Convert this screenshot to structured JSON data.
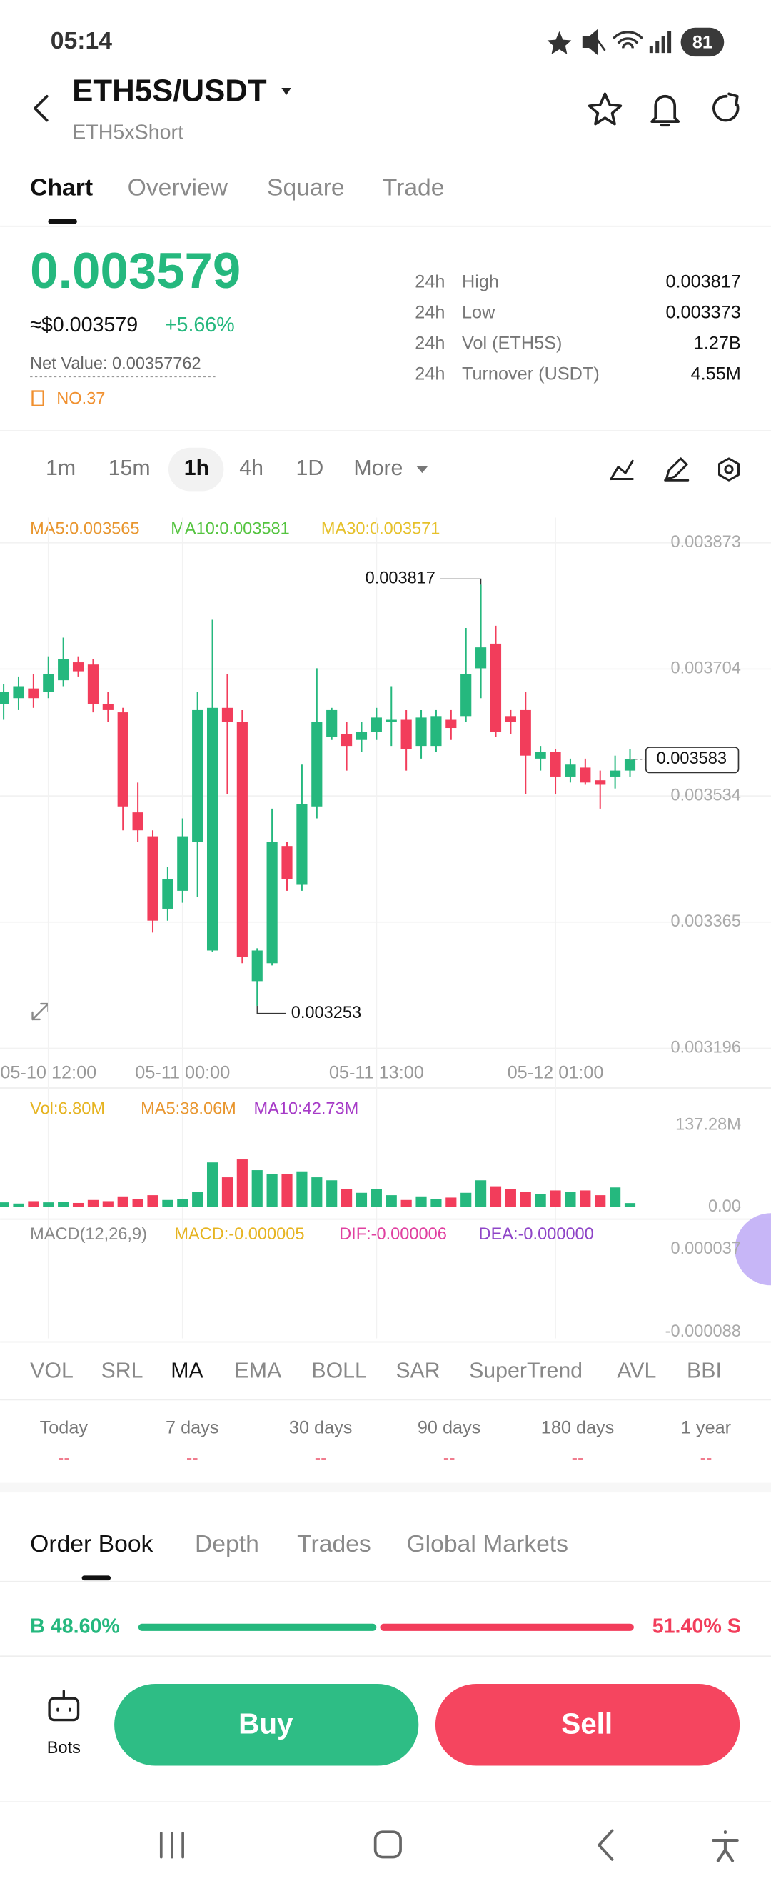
{
  "status_bar": {
    "time": "05:14",
    "battery": "81"
  },
  "header": {
    "pair": "ETH5S/USDT",
    "subtitle": "ETH5xShort"
  },
  "tabs": [
    "Chart",
    "Overview",
    "Square",
    "Trade"
  ],
  "price": {
    "last": "0.003579",
    "fiat": "≈$0.003579",
    "change": "+5.66%",
    "net_value": "Net Value: 0.00357762",
    "rank": "NO.37"
  },
  "stats": [
    {
      "period": "24h",
      "label": "High",
      "value": "0.003817"
    },
    {
      "period": "24h",
      "label": "Low",
      "value": "0.003373"
    },
    {
      "period": "24h",
      "label": "Vol (ETH5S)",
      "value": "1.27B"
    },
    {
      "period": "24h",
      "label": "Turnover (USDT)",
      "value": "4.55M"
    }
  ],
  "intervals": [
    "1m",
    "15m",
    "1h",
    "4h",
    "1D",
    "More"
  ],
  "kline": {
    "type": "candlestick",
    "ma_labels": [
      "MA5:0.003565",
      "MA10:0.003581",
      "MA30:0.003571"
    ],
    "ylim": [
      0.003196,
      0.003873
    ],
    "yticks": [
      0.003873,
      0.003704,
      0.003534,
      0.003365,
      0.003196
    ],
    "categories": [
      null,
      null,
      null,
      "05-10 12:00",
      null,
      null,
      null,
      null,
      null,
      null,
      null,
      null,
      "05-11 00:00",
      null,
      null,
      null,
      null,
      null,
      null,
      null,
      null,
      null,
      null,
      null,
      null,
      "05-11 13:00",
      null,
      null,
      null,
      null,
      null,
      null,
      null,
      null,
      null,
      null,
      null,
      "05-12 01:00",
      null,
      null,
      null,
      null,
      null
    ],
    "candles": [
      [
        0.003657,
        0.003684,
        0.003636,
        0.003673
      ],
      [
        0.003665,
        0.003694,
        0.003649,
        0.003681
      ],
      [
        0.003678,
        0.003697,
        0.003652,
        0.003665
      ],
      [
        0.003673,
        0.003721,
        0.003665,
        0.003697
      ],
      [
        0.003689,
        0.003746,
        0.003681,
        0.003717
      ],
      [
        0.003713,
        0.003721,
        0.003694,
        0.003701
      ],
      [
        0.00371,
        0.003717,
        0.003646,
        0.003657
      ],
      [
        0.003657,
        0.003673,
        0.003633,
        0.003649
      ],
      [
        0.003646,
        0.003652,
        0.003488,
        0.00352
      ],
      [
        0.003512,
        0.003552,
        0.003472,
        0.003488
      ],
      [
        0.00348,
        0.003488,
        0.003351,
        0.003367
      ],
      [
        0.003383,
        0.003439,
        0.003367,
        0.003423
      ],
      [
        0.003407,
        0.003504,
        0.003391,
        0.00348
      ],
      [
        0.003472,
        0.003673,
        0.003399,
        0.003649
      ],
      [
        0.003327,
        0.00377,
        0.003325,
        0.003652
      ],
      [
        0.003652,
        0.003697,
        0.003536,
        0.003633
      ],
      [
        0.003633,
        0.003649,
        0.00331,
        0.003318
      ],
      [
        0.003286,
        0.00333,
        0.003253,
        0.003327
      ],
      [
        0.00331,
        0.003517,
        0.003307,
        0.003472
      ],
      [
        0.003467,
        0.003472,
        0.003407,
        0.003423
      ],
      [
        0.003415,
        0.003576,
        0.003407,
        0.003523
      ],
      [
        0.00352,
        0.003705,
        0.003504,
        0.003633
      ],
      [
        0.003613,
        0.003652,
        0.003609,
        0.003649
      ],
      [
        0.003617,
        0.003633,
        0.003568,
        0.003601
      ],
      [
        0.003609,
        0.003633,
        0.003593,
        0.00362
      ],
      [
        0.00362,
        0.003652,
        0.003609,
        0.003639
      ],
      [
        0.003633,
        0.003681,
        0.003601,
        0.003636
      ],
      [
        0.003636,
        0.003649,
        0.003568,
        0.003597
      ],
      [
        0.003601,
        0.003649,
        0.003584,
        0.003639
      ],
      [
        0.003601,
        0.003649,
        0.003593,
        0.003641
      ],
      [
        0.003636,
        0.003649,
        0.003609,
        0.003625
      ],
      [
        0.003641,
        0.003759,
        0.003633,
        0.003697
      ],
      [
        0.003705,
        0.003817,
        0.003665,
        0.003733
      ],
      [
        0.003738,
        0.003762,
        0.003613,
        0.00362
      ],
      [
        0.003641,
        0.003649,
        0.003617,
        0.003633
      ],
      [
        0.003649,
        0.003673,
        0.003536,
        0.003588
      ],
      [
        0.003584,
        0.003601,
        0.003568,
        0.003593
      ],
      [
        0.003593,
        0.003597,
        0.003536,
        0.00356
      ],
      [
        0.00356,
        0.003584,
        0.003552,
        0.003576
      ],
      [
        0.003572,
        0.003584,
        0.003549,
        0.003552
      ],
      [
        0.003555,
        0.003568,
        0.003517,
        0.003549
      ],
      [
        0.00356,
        0.003588,
        0.003544,
        0.003568
      ],
      [
        0.003568,
        0.003597,
        0.00356,
        0.003583
      ]
    ]
  },
  "volume": {
    "legend": [
      "Vol:6.80M",
      "MA5:38.06M",
      "MA10:42.73M"
    ],
    "ylim": [
      0,
      137.28
    ],
    "yticks": [
      {
        "value": 137.28,
        "label": "137.28M"
      },
      {
        "value": 0,
        "label": "0.00"
      }
    ],
    "values": [
      8,
      6,
      10,
      8,
      9,
      7,
      12,
      10,
      18,
      14,
      20,
      12,
      14,
      25,
      75,
      50,
      80,
      62,
      56,
      55,
      60,
      50,
      45,
      30,
      24,
      30,
      20,
      12,
      18,
      14,
      16,
      24,
      45,
      35,
      30,
      25,
      22,
      28,
      26,
      28,
      20,
      33,
      6.8
    ]
  },
  "macd": {
    "legend": [
      "MACD(12,26,9)",
      "MACD:-0.000005",
      "DIF:-0.000006",
      "DEA:-0.000000"
    ],
    "yticks": [
      3.7e-05,
      -8.8e-05
    ]
  },
  "indicators": [
    "VOL",
    "SRL",
    "MA",
    "EMA",
    "BOLL",
    "SAR",
    "SuperTrend",
    "AVL",
    "BBI"
  ],
  "returns": [
    {
      "period": "Today",
      "value": "--"
    },
    {
      "period": "7 days",
      "value": "--"
    },
    {
      "period": "30 days",
      "value": "--"
    },
    {
      "period": "90 days",
      "value": "--"
    },
    {
      "period": "180 days",
      "value": "--"
    },
    {
      "period": "1 year",
      "value": "--"
    }
  ],
  "book_tabs": [
    "Order Book",
    "Depth",
    "Trades",
    "Global Markets"
  ],
  "ratio": {
    "buy": "B 48.60%",
    "sell": "51.40% S"
  },
  "bottom": {
    "bots": "Bots",
    "buy": "Buy",
    "sell": "Sell"
  }
}
